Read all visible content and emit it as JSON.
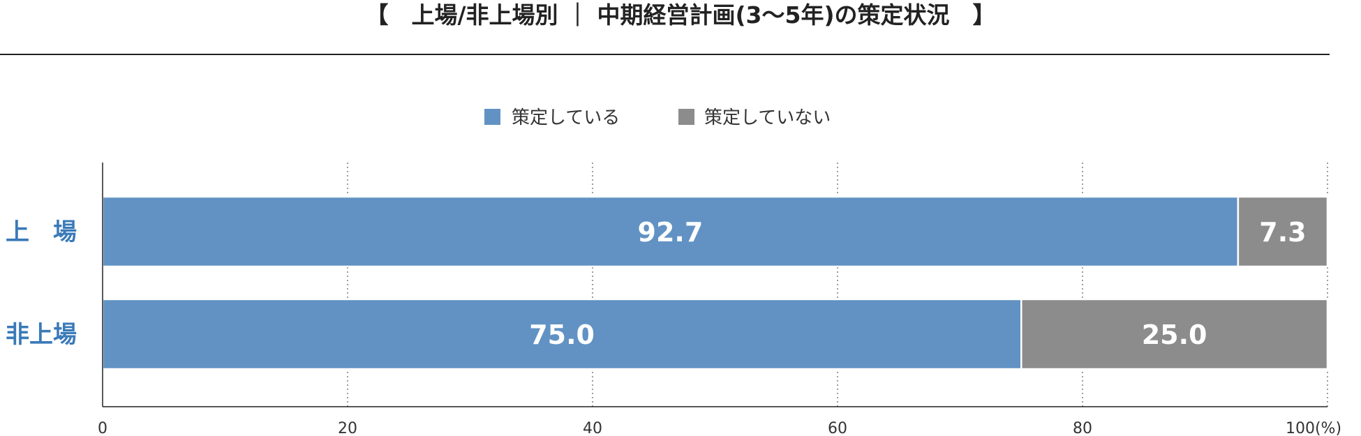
{
  "chart_data": {
    "type": "bar",
    "orientation": "horizontal",
    "stacked": true,
    "title": "【　上場/非上場別 ｜ 中期経営計画(3〜5年)の策定状況　】",
    "categories": [
      "上　場",
      "非上場"
    ],
    "series": [
      {
        "name": "策定している",
        "values": [
          92.7,
          75.0
        ],
        "color": "#6192c3"
      },
      {
        "name": "策定していない",
        "values": [
          7.3,
          25.0
        ],
        "color": "#8c8c8c"
      }
    ],
    "value_labels": [
      [
        "92.7",
        "75.0"
      ],
      [
        "7.3",
        "25.0"
      ]
    ],
    "xlim": [
      0,
      100
    ],
    "xticks": [
      0,
      20,
      40,
      60,
      80,
      100
    ],
    "xtick_labels": [
      "0",
      "20",
      "40",
      "60",
      "80",
      "100(%)"
    ],
    "grid": "vertical-dotted",
    "legend_position": "top-center",
    "category_label_color": "#3a7ab8"
  }
}
